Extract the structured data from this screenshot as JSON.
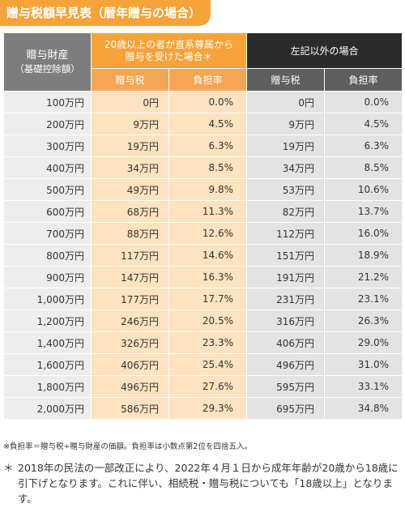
{
  "title": "贈与税額早見表（暦年贈与の場合）",
  "table": {
    "asset_header_line1": "贈与財産",
    "asset_header_line2": "（基礎控除額）",
    "group_a_line1": "20歳以上の者が直系尊属から",
    "group_a_line2": "贈与を受けた場合＊",
    "group_b": "左記以外の場合",
    "sub_tax_a": "贈与税",
    "sub_rate_a": "負担率",
    "sub_tax_b": "贈与税",
    "sub_rate_b": "負担率",
    "rows": [
      {
        "asset": "100万円",
        "tax_a": "0円",
        "rate_a": "0.0%",
        "tax_b": "0円",
        "rate_b": "0.0%"
      },
      {
        "asset": "200万円",
        "tax_a": "9万円",
        "rate_a": "4.5%",
        "tax_b": "9万円",
        "rate_b": "4.5%"
      },
      {
        "asset": "300万円",
        "tax_a": "19万円",
        "rate_a": "6.3%",
        "tax_b": "19万円",
        "rate_b": "6.3%"
      },
      {
        "asset": "400万円",
        "tax_a": "34万円",
        "rate_a": "8.5%",
        "tax_b": "34万円",
        "rate_b": "8.5%"
      },
      {
        "asset": "500万円",
        "tax_a": "49万円",
        "rate_a": "9.8%",
        "tax_b": "53万円",
        "rate_b": "10.6%"
      },
      {
        "asset": "600万円",
        "tax_a": "68万円",
        "rate_a": "11.3%",
        "tax_b": "82万円",
        "rate_b": "13.7%"
      },
      {
        "asset": "700万円",
        "tax_a": "88万円",
        "rate_a": "12.6%",
        "tax_b": "112万円",
        "rate_b": "16.0%"
      },
      {
        "asset": "800万円",
        "tax_a": "117万円",
        "rate_a": "14.6%",
        "tax_b": "151万円",
        "rate_b": "18.9%"
      },
      {
        "asset": "900万円",
        "tax_a": "147万円",
        "rate_a": "16.3%",
        "tax_b": "191万円",
        "rate_b": "21.2%"
      },
      {
        "asset": "1,000万円",
        "tax_a": "177万円",
        "rate_a": "17.7%",
        "tax_b": "231万円",
        "rate_b": "23.1%"
      },
      {
        "asset": "1,200万円",
        "tax_a": "246万円",
        "rate_a": "20.5%",
        "tax_b": "316万円",
        "rate_b": "26.3%"
      },
      {
        "asset": "1,400万円",
        "tax_a": "326万円",
        "rate_a": "23.3%",
        "tax_b": "406万円",
        "rate_b": "29.0%"
      },
      {
        "asset": "1,600万円",
        "tax_a": "406万円",
        "rate_a": "25.4%",
        "tax_b": "496万円",
        "rate_b": "31.0%"
      },
      {
        "asset": "1,800万円",
        "tax_a": "496万円",
        "rate_a": "27.6%",
        "tax_b": "595万円",
        "rate_b": "33.1%"
      },
      {
        "asset": "2,000万円",
        "tax_a": "586万円",
        "rate_a": "29.3%",
        "tax_b": "695万円",
        "rate_b": "34.8%"
      }
    ]
  },
  "note": "※負担率＝贈与税÷贈与財産の価額。負担率は小数点第2位を四捨五入。",
  "footnote": {
    "mark": "＊",
    "text": "2018年の民法の一部改正により、2022年４月１日から成年年齢が20歳から18歳に引下げとなります。これに伴い、相続税・贈与税についても「18歳以上」となります。"
  },
  "colors": {
    "accent_orange": "#f6a33a",
    "light_orange": "#fde3bf",
    "dark_header": "#2b2b2b",
    "gray_header": "#7d7d7d",
    "light_gray": "#e3e3e3"
  }
}
